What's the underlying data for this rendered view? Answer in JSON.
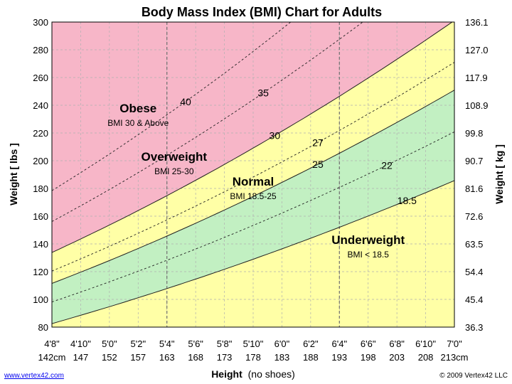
{
  "chart_data": {
    "type": "area",
    "title": "Body Mass Index (BMI) Chart for Adults",
    "ylabel_left": "Weight [ lbs ]",
    "ylabel_right": "Weight [ kg ]",
    "xlabel_bold": "Height",
    "xlabel_rest": "(no shoes)",
    "x_range_in": [
      56,
      84
    ],
    "y_range_lbs": [
      80,
      300
    ],
    "y_ticks_left": [
      "80",
      "100",
      "120",
      "140",
      "160",
      "180",
      "200",
      "220",
      "240",
      "260",
      "280",
      "300"
    ],
    "y_ticks_right": [
      "36.3",
      "45.4",
      "54.4",
      "63.5",
      "72.6",
      "81.6",
      "90.7",
      "99.8",
      "108.9",
      "117.9",
      "127.0",
      "136.1"
    ],
    "x_ticks_ft": [
      "4'8\"",
      "4'10\"",
      "5'0\"",
      "5'2\"",
      "5'4\"",
      "5'6\"",
      "5'8\"",
      "5'10\"",
      "6'0\"",
      "6'2\"",
      "6'4\"",
      "6'6\"",
      "6'8\"",
      "6'10\"",
      "7'0\""
    ],
    "x_ticks_cm": [
      "142cm",
      "147",
      "152",
      "157",
      "163",
      "168",
      "173",
      "178",
      "183",
      "188",
      "193",
      "198",
      "203",
      "208",
      "213cm"
    ],
    "bmi_series": [
      {
        "bmi": 18.5,
        "label": "18.5",
        "style": "solid"
      },
      {
        "bmi": 22,
        "label": "22",
        "style": "dashed"
      },
      {
        "bmi": 25,
        "label": "25",
        "style": "solid"
      },
      {
        "bmi": 27,
        "label": "27",
        "style": "dashed"
      },
      {
        "bmi": 30,
        "label": "30",
        "style": "solid"
      },
      {
        "bmi": 35,
        "label": "35",
        "style": "dashed"
      },
      {
        "bmi": 40,
        "label": "40",
        "style": "dashed"
      }
    ],
    "zones": [
      {
        "name": "Underweight",
        "sub": "BMI < 18.5",
        "color": "#ffffa6"
      },
      {
        "name": "Normal",
        "sub": "BMI 18.5-25",
        "color": "#c2f0c2"
      },
      {
        "name": "Overweight",
        "sub": "BMI 25-30",
        "color": "#ffffa6"
      },
      {
        "name": "Obese",
        "sub": "BMI 30 & Above",
        "color": "#f7b6c8"
      }
    ],
    "grid": true,
    "marker_heights_in": [
      64,
      76
    ]
  },
  "footer": {
    "link": "www.vertex42.com",
    "copyright": "© 2009 Vertex42 LLC"
  }
}
